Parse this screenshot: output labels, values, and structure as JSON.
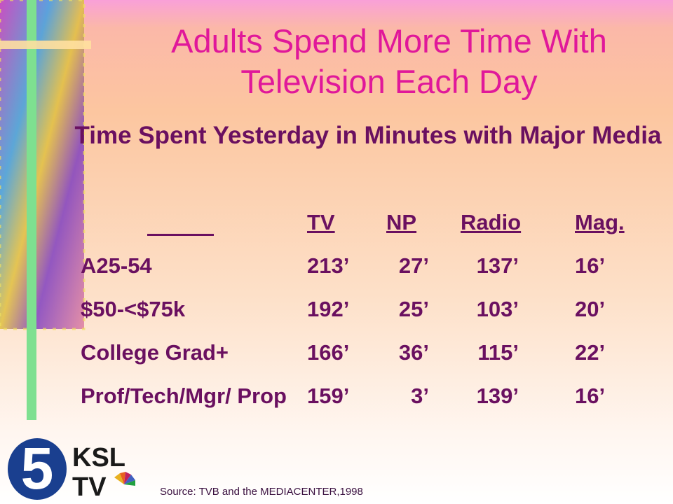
{
  "header": {
    "title": "Adults Spend More Time With Television Each Day",
    "subtitle": "Time Spent Yesterday in Minutes with Major Media"
  },
  "table": {
    "columns": [
      "TV",
      "NP",
      "Radio",
      "Mag."
    ],
    "rows": [
      [
        "A25-54",
        "213’",
        "27’",
        "137’",
        "16’"
      ],
      [
        "$50-<$75k",
        "192’",
        "25’",
        "103’",
        "20’"
      ],
      [
        "College Grad+",
        "166’",
        "36’",
        "115’",
        "22’"
      ],
      [
        "Prof/Tech/Mgr/ Prop",
        "159’",
        "3’",
        "139’",
        "16’"
      ]
    ]
  },
  "logo": {
    "number": "5",
    "line1": "KSL",
    "line2": "TV"
  },
  "source": "Source: TVB and the MEDIACENTER,1998"
}
